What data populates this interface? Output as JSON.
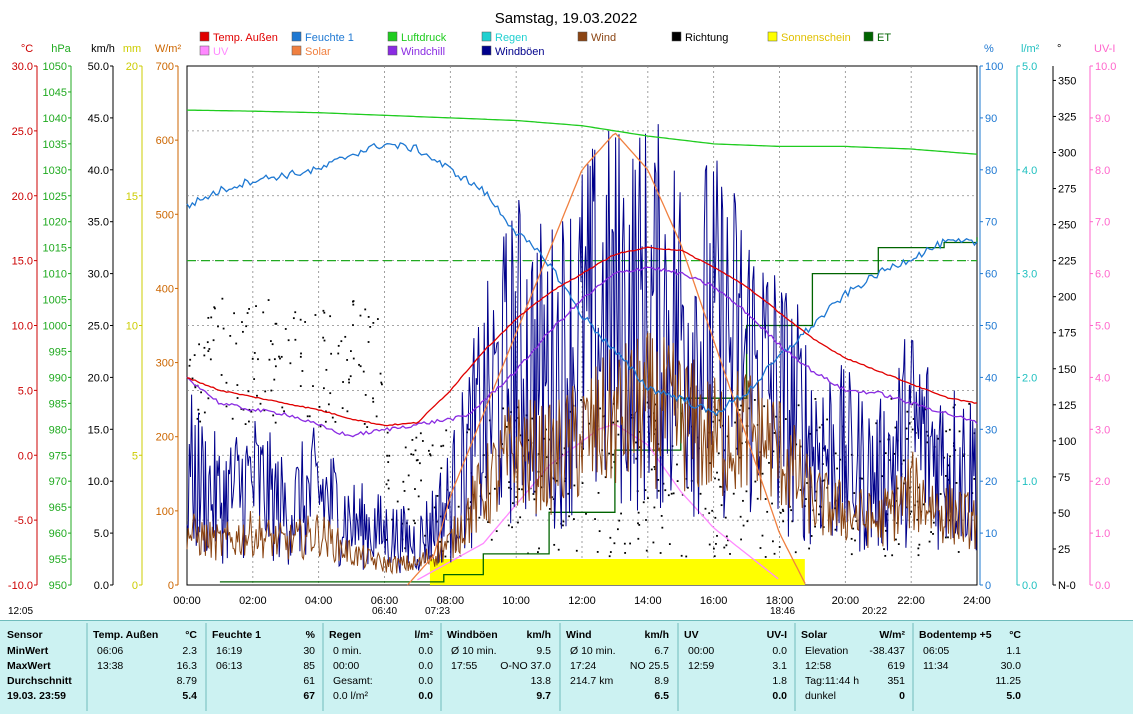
{
  "title": "Samstag, 19.03.2022",
  "legend": [
    {
      "label": "Temp. Außen",
      "color": "#e00000"
    },
    {
      "label": "UV",
      "color": "#ff88ff"
    },
    {
      "label": "Feuchte 1",
      "color": "#1e78d2"
    },
    {
      "label": "Solar",
      "color": "#f08040"
    },
    {
      "label": "Luftdruck",
      "color": "#20cc20"
    },
    {
      "label": "Windchill",
      "color": "#8a2be2"
    },
    {
      "label": "Regen",
      "color": "#20d0d0"
    },
    {
      "label": "Windböen",
      "color": "#00008b"
    },
    {
      "label": "Wind",
      "color": "#8b4513"
    },
    {
      "label": "Richtung",
      "color": "#000000"
    },
    {
      "label": "Sonnenschein",
      "color": "#ffff00"
    },
    {
      "label": "ET",
      "color": "#006400"
    }
  ],
  "axes_left": [
    {
      "unit": "°C",
      "color": "#cc0000",
      "ticks": [
        "30.0",
        "25.0",
        "20.0",
        "15.0",
        "10.0",
        "5.0",
        "0.0",
        "-5.0",
        "-10.0"
      ]
    },
    {
      "unit": "hPa",
      "color": "#20aa20",
      "ticks": [
        "1050",
        "1045",
        "1040",
        "1035",
        "1030",
        "1025",
        "1020",
        "1015",
        "1010",
        "1005",
        "1000",
        "995",
        "990",
        "985",
        "980",
        "975",
        "970",
        "965",
        "960",
        "955",
        "950"
      ]
    },
    {
      "unit": "km/h",
      "color": "#000000",
      "ticks": [
        "50.0",
        "45.0",
        "40.0",
        "35.0",
        "30.0",
        "25.0",
        "20.0",
        "15.0",
        "10.0",
        "5.0",
        "0.0"
      ]
    },
    {
      "unit": "mm",
      "color": "#cccc00",
      "ticks": [
        "20",
        "15",
        "10",
        "5",
        "0"
      ]
    },
    {
      "unit": "W/m²",
      "color": "#cc6600",
      "ticks": [
        "700",
        "600",
        "500",
        "400",
        "300",
        "200",
        "100",
        "0"
      ]
    }
  ],
  "axes_right": [
    {
      "unit": "%",
      "color": "#1e78d2",
      "ticks": [
        "100",
        "90",
        "80",
        "70",
        "60",
        "50",
        "40",
        "30",
        "20",
        "10",
        "0"
      ]
    },
    {
      "unit": "l/m²",
      "color": "#20c0c0",
      "ticks": [
        "5.0",
        "4.0",
        "3.0",
        "2.0",
        "1.0",
        "0.0"
      ]
    },
    {
      "unit": "°",
      "color": "#000000",
      "ticks": [
        "350",
        "325",
        "300",
        "275",
        "250",
        "225",
        "200",
        "175",
        "150",
        "125",
        "100",
        "75",
        "50",
        "25",
        "N-0"
      ]
    },
    {
      "unit": "UV-I",
      "color": "#ff66cc",
      "ticks": [
        "10.0",
        "9.0",
        "8.0",
        "7.0",
        "6.0",
        "5.0",
        "4.0",
        "3.0",
        "2.0",
        "1.0",
        "0.0"
      ]
    }
  ],
  "x_ticks": [
    "00:00",
    "02:00",
    "04:00",
    "06:00",
    "08:00",
    "10:00",
    "12:00",
    "14:00",
    "16:00",
    "18:00",
    "20:00",
    "22:00",
    "24:00"
  ],
  "time_markers": [
    "12:05",
    "06:40",
    "07:23",
    "18:46",
    "20:22"
  ],
  "chart_data": {
    "type": "line",
    "x_unit": "hour",
    "series": [
      {
        "name": "Temp. Außen",
        "unit": "°C",
        "color": "#e00000",
        "x": [
          0,
          1,
          2,
          3,
          4,
          5,
          6,
          7,
          8,
          9,
          10,
          11,
          12,
          13,
          14,
          15,
          16,
          17,
          18,
          19,
          20,
          21,
          22,
          23,
          24
        ],
        "y": [
          6.0,
          5.0,
          4.5,
          4.0,
          3.5,
          2.8,
          2.3,
          2.5,
          5.0,
          8.0,
          10.5,
          12.5,
          14.0,
          15.5,
          16.0,
          15.8,
          14.5,
          13.0,
          11.0,
          9.0,
          7.5,
          6.5,
          5.5,
          4.5,
          4.0
        ]
      },
      {
        "name": "Feuchte 1",
        "unit": "%",
        "color": "#1e78d2",
        "x": [
          0,
          1,
          2,
          3,
          4,
          5,
          6,
          7,
          8,
          9,
          10,
          11,
          12,
          13,
          14,
          15,
          16,
          17,
          18,
          19,
          20,
          21,
          22,
          23,
          24
        ],
        "y": [
          73,
          76,
          78,
          79,
          80,
          83,
          85,
          84,
          80,
          76,
          68,
          62,
          52,
          45,
          38,
          36,
          33,
          37,
          44,
          50,
          56,
          60,
          63,
          66,
          66
        ]
      },
      {
        "name": "Luftdruck",
        "unit": "hPa",
        "color": "#20cc20",
        "x": [
          0,
          2,
          4,
          6,
          8,
          10,
          12,
          14,
          16,
          18,
          20,
          22,
          24
        ],
        "y": [
          1041.5,
          1041.3,
          1041.0,
          1040.5,
          1040.0,
          1039.5,
          1038.5,
          1036.5,
          1035.0,
          1034.5,
          1034.5,
          1034.0,
          1033.0
        ]
      },
      {
        "name": "Solar",
        "unit": "W/m²",
        "color": "#f08040",
        "x": [
          6.7,
          7.5,
          8,
          9,
          10,
          11,
          12,
          13,
          14,
          15,
          16,
          17,
          18,
          18.8
        ],
        "y": [
          0,
          40,
          120,
          230,
          340,
          450,
          560,
          610,
          560,
          460,
          330,
          200,
          70,
          0
        ]
      },
      {
        "name": "Windchill",
        "unit": "°C",
        "color": "#8a2be2",
        "x": [
          0,
          1,
          2,
          3,
          4.9,
          8.5,
          10,
          11,
          12,
          13,
          14,
          15,
          16,
          17,
          18,
          19,
          20,
          21,
          22,
          23,
          24
        ],
        "y": [
          6.0,
          4.0,
          3.5,
          3.2,
          1.5,
          3.0,
          6.5,
          9.5,
          12.0,
          14.0,
          14.5,
          14.0,
          13.0,
          11.0,
          8.5,
          6.5,
          5.0,
          4.8,
          4.0,
          3.3,
          2.5
        ]
      },
      {
        "name": "Windböen",
        "unit": "km/h",
        "color": "#00008b",
        "x": [
          0,
          1,
          2,
          3,
          4,
          5,
          6,
          7,
          8,
          9,
          10,
          11,
          12,
          13,
          14,
          15,
          16,
          17,
          18,
          19,
          20,
          21,
          22,
          23,
          24
        ],
        "y": [
          11,
          8,
          10,
          7,
          9,
          6,
          5,
          4,
          8,
          16,
          22,
          20,
          24,
          26,
          26,
          25,
          24,
          22,
          18,
          14,
          12,
          10,
          15,
          12,
          11
        ]
      },
      {
        "name": "Wind",
        "unit": "km/h",
        "color": "#8b4513",
        "x": [
          0,
          1,
          2,
          3,
          4,
          5,
          6,
          7,
          8,
          9,
          10,
          11,
          12,
          13,
          14,
          15,
          16,
          17,
          18,
          19,
          20,
          21,
          22,
          23,
          24
        ],
        "y": [
          5,
          4,
          5,
          4,
          5,
          3,
          2,
          2,
          4,
          9,
          13,
          12,
          14,
          16,
          17,
          16,
          14,
          15,
          13,
          8,
          7,
          6,
          9,
          7,
          6
        ]
      },
      {
        "name": "ET",
        "unit": "l/m²",
        "color": "#006400",
        "x": [
          1,
          6,
          7.8,
          9,
          11,
          13,
          15,
          17,
          19,
          21,
          23,
          24
        ],
        "y": [
          0.03,
          0.03,
          0.1,
          0.3,
          0.7,
          1.3,
          1.8,
          2.5,
          3.0,
          3.25,
          3.3,
          3.35
        ]
      },
      {
        "name": "UV",
        "unit": "UV-I",
        "color": "#ff88ff",
        "x": [
          7,
          9,
          11,
          12.5,
          13,
          14,
          15,
          16,
          17,
          18
        ],
        "y": [
          0.1,
          0.8,
          2.3,
          3.0,
          3.1,
          2.7,
          1.8,
          1.1,
          0.6,
          0.1
        ]
      }
    ],
    "wind_direction_points": 600
  },
  "stats": {
    "headers": [
      "Sensor",
      "Temp. Außen",
      "°C",
      "Feuchte 1",
      "%",
      "Regen",
      "l/m²",
      "Windböen",
      "km/h",
      "Wind",
      "km/h",
      "UV",
      "UV-I",
      "Solar",
      "W/m²",
      "Bodentemp +5",
      "°C"
    ],
    "row_labels": [
      "MinWert",
      "MaxWert",
      "Durchschnitt",
      "19.03. 23:59"
    ],
    "temp": [
      [
        "06:06",
        "2.3"
      ],
      [
        "13:38",
        "16.3"
      ],
      [
        "",
        "8.79"
      ],
      [
        "",
        "5.4"
      ]
    ],
    "hum": [
      [
        "16:19",
        "30"
      ],
      [
        "06:13",
        "85"
      ],
      [
        "",
        "61"
      ],
      [
        "",
        "67"
      ]
    ],
    "rain": [
      [
        "0 min.",
        "0.0"
      ],
      [
        "00:00",
        "0.0"
      ],
      [
        "Gesamt:",
        "0.0"
      ],
      [
        "0.0 l/m²",
        "0.0"
      ]
    ],
    "gust": [
      [
        "Ø 10 min.",
        "9.5"
      ],
      [
        "17:55",
        "O-NO 37.0"
      ],
      [
        "",
        "13.8"
      ],
      [
        "",
        "9.7"
      ]
    ],
    "wind": [
      [
        "Ø 10 min.",
        "6.7"
      ],
      [
        "17:24",
        "NO 25.5"
      ],
      [
        "214.7 km",
        "8.9"
      ],
      [
        "",
        "6.5"
      ]
    ],
    "uv": [
      [
        "00:00",
        "0.0"
      ],
      [
        "12:59",
        "3.1"
      ],
      [
        "",
        "1.8"
      ],
      [
        "",
        "0.0"
      ]
    ],
    "solar": [
      [
        "Elevation",
        "-38.437"
      ],
      [
        "12:58",
        "619"
      ],
      [
        "Tag:11:44 h",
        "351"
      ],
      [
        "dunkel",
        "0"
      ]
    ],
    "soil": [
      [
        "06:05",
        "1.1"
      ],
      [
        "11:34",
        "30.0"
      ],
      [
        "",
        "11.25"
      ],
      [
        "",
        "5.0"
      ]
    ]
  }
}
